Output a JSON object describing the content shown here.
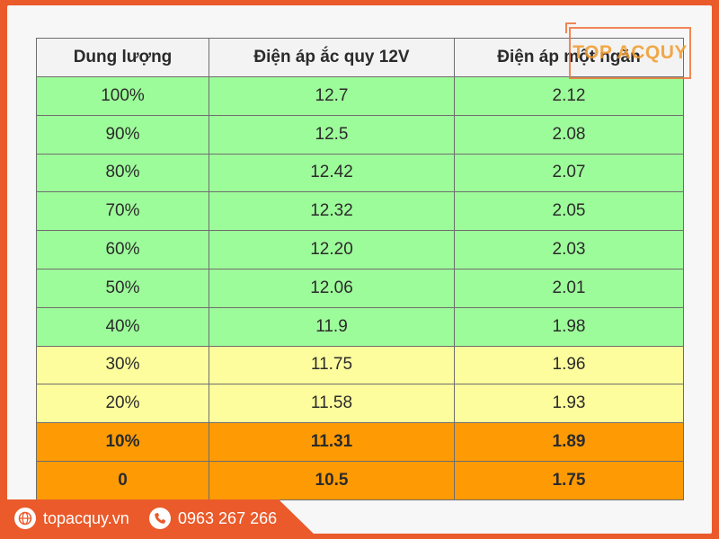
{
  "table": {
    "headers": [
      "Dung lượng",
      "Điện áp ắc quy 12V",
      "Điện áp một ngăn"
    ],
    "rows": [
      {
        "capacity": "100%",
        "battery_12v": "12.7",
        "single_cell": "2.12",
        "level": "green"
      },
      {
        "capacity": "90%",
        "battery_12v": "12.5",
        "single_cell": "2.08",
        "level": "green"
      },
      {
        "capacity": "80%",
        "battery_12v": "12.42",
        "single_cell": "2.07",
        "level": "green"
      },
      {
        "capacity": "70%",
        "battery_12v": "12.32",
        "single_cell": "2.05",
        "level": "green"
      },
      {
        "capacity": "60%",
        "battery_12v": "12.20",
        "single_cell": "2.03",
        "level": "green"
      },
      {
        "capacity": "50%",
        "battery_12v": "12.06",
        "single_cell": "2.01",
        "level": "green"
      },
      {
        "capacity": "40%",
        "battery_12v": "11.9",
        "single_cell": "1.98",
        "level": "green"
      },
      {
        "capacity": "30%",
        "battery_12v": "11.75",
        "single_cell": "1.96",
        "level": "yellow"
      },
      {
        "capacity": "20%",
        "battery_12v": "11.58",
        "single_cell": "1.93",
        "level": "yellow"
      },
      {
        "capacity": "10%",
        "battery_12v": "11.31",
        "single_cell": "1.89",
        "level": "orange"
      },
      {
        "capacity": "0",
        "battery_12v": "10.5",
        "single_cell": "1.75",
        "level": "orange"
      }
    ]
  },
  "logo": {
    "text": "TOP ACQUY"
  },
  "footer": {
    "website": "topacquy.vn",
    "phone": "0963 267 266",
    "website_icon": "globe-icon",
    "phone_icon": "phone-icon"
  },
  "colors": {
    "brand": "#ea5a2a",
    "green": "#9dfc9a",
    "yellow": "#fefd9d",
    "orange": "#fe9b04"
  }
}
